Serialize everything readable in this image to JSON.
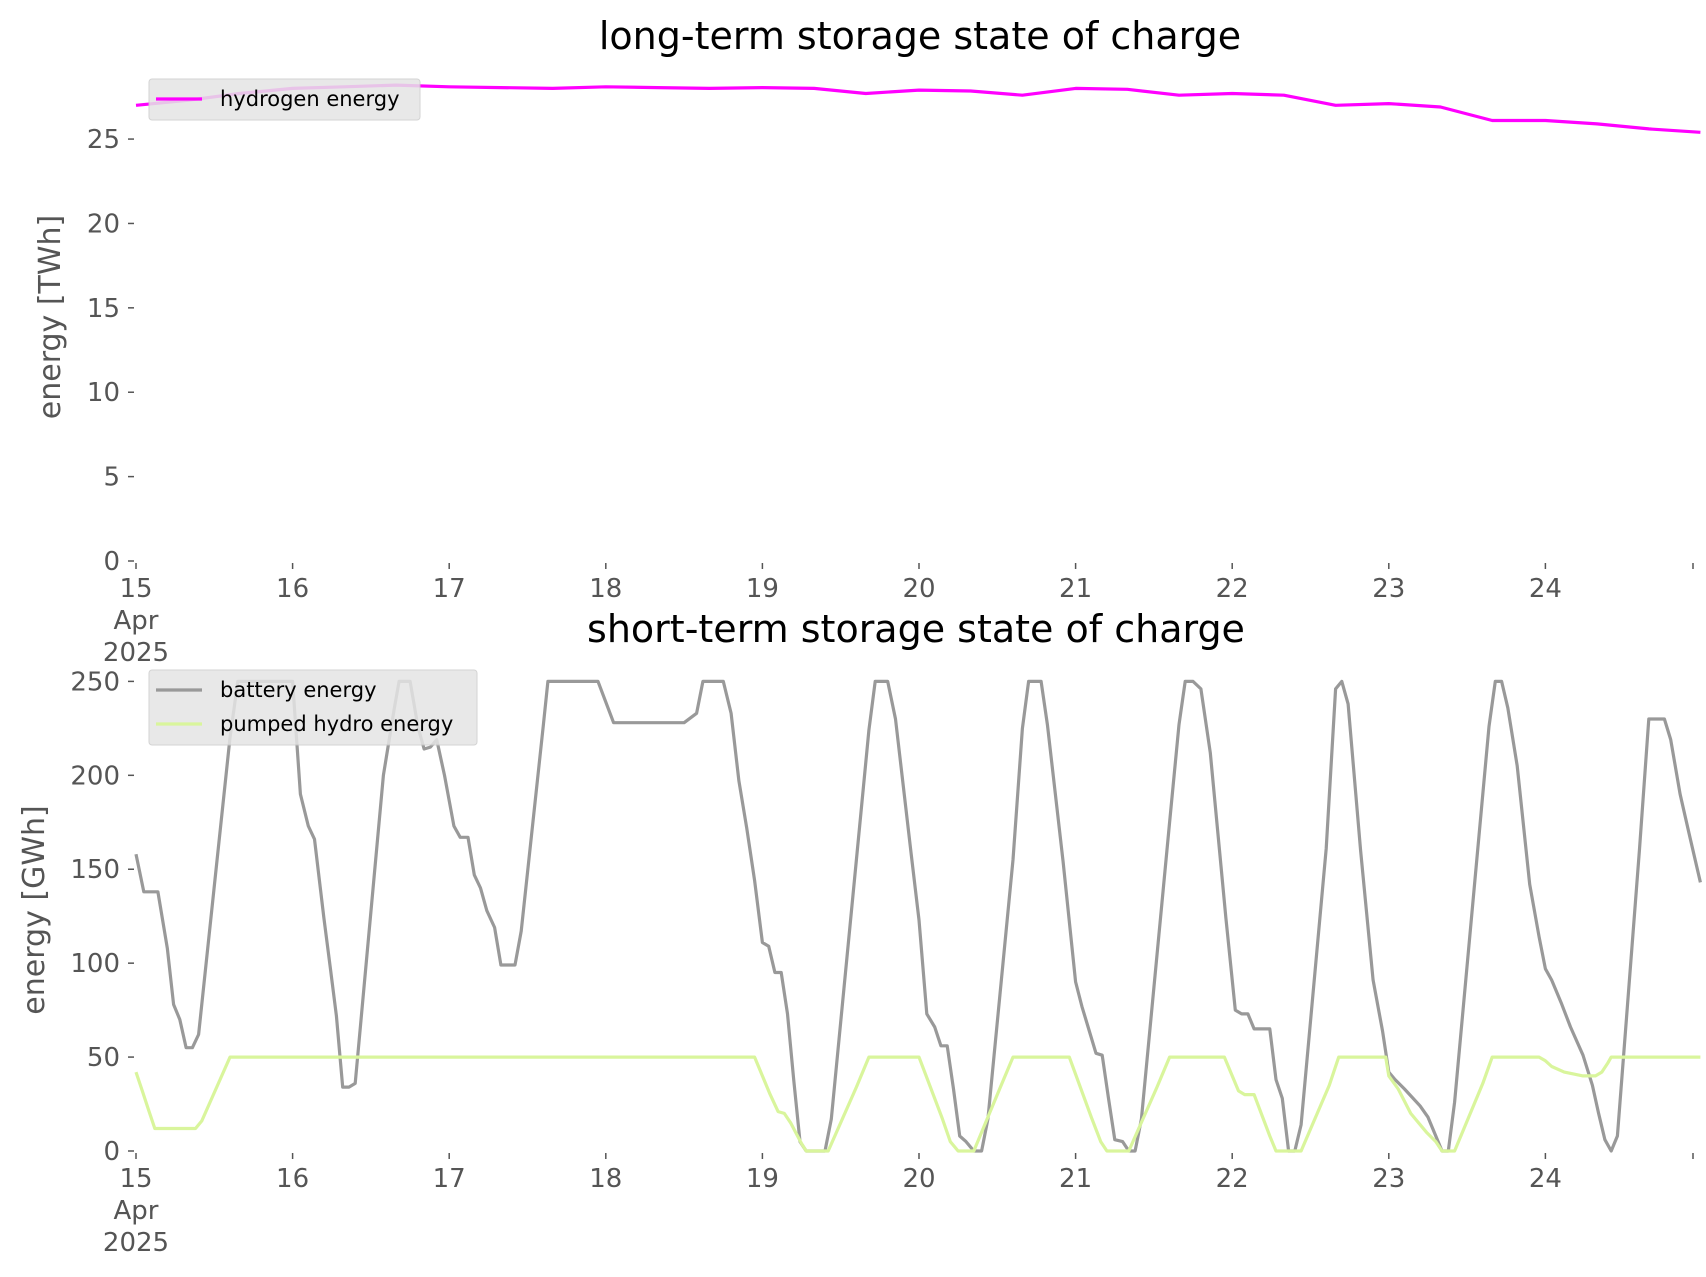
{
  "chart_data": [
    {
      "type": "line",
      "title": "long-term storage state of charge",
      "ylabel": "energy [TWh]",
      "xlabel": "",
      "ylim": [
        0,
        28.5
      ],
      "yticks": [
        0,
        5,
        10,
        15,
        20,
        25
      ],
      "x_range": [
        "2025-04-15T00:00",
        "2025-04-24T23:00"
      ],
      "xticks": [
        {
          "day": 0,
          "lines": [
            "15",
            "Apr",
            "2025"
          ]
        },
        {
          "day": 1,
          "lines": [
            "16"
          ]
        },
        {
          "day": 2,
          "lines": [
            "17"
          ]
        },
        {
          "day": 3,
          "lines": [
            "18"
          ]
        },
        {
          "day": 4,
          "lines": [
            "19"
          ]
        },
        {
          "day": 5,
          "lines": [
            "20"
          ]
        },
        {
          "day": 6,
          "lines": [
            "21"
          ]
        },
        {
          "day": 7,
          "lines": [
            "22"
          ]
        },
        {
          "day": 8,
          "lines": [
            "23"
          ]
        },
        {
          "day": 9,
          "lines": [
            "24"
          ]
        }
      ],
      "grid": false,
      "legend_position": "top-left",
      "series": [
        {
          "name": "hydrogen energy",
          "color": "#ff00ff",
          "points": [
            [
              0,
              27.0
            ],
            [
              0.33,
              27.3
            ],
            [
              0.66,
              27.7
            ],
            [
              1.0,
              28.0
            ],
            [
              1.33,
              28.1
            ],
            [
              1.66,
              28.2
            ],
            [
              2.0,
              28.1
            ],
            [
              2.33,
              28.05
            ],
            [
              2.66,
              28.0
            ],
            [
              3.0,
              28.1
            ],
            [
              3.33,
              28.05
            ],
            [
              3.66,
              28.0
            ],
            [
              4.0,
              28.05
            ],
            [
              4.33,
              28.0
            ],
            [
              4.66,
              27.7
            ],
            [
              5.0,
              27.9
            ],
            [
              5.33,
              27.85
            ],
            [
              5.66,
              27.6
            ],
            [
              6.0,
              28.0
            ],
            [
              6.33,
              27.95
            ],
            [
              6.66,
              27.6
            ],
            [
              7.0,
              27.7
            ],
            [
              7.33,
              27.6
            ],
            [
              7.66,
              27.0
            ],
            [
              8.0,
              27.1
            ],
            [
              8.33,
              26.9
            ],
            [
              8.66,
              26.1
            ],
            [
              9.0,
              26.1
            ],
            [
              9.33,
              25.9
            ],
            [
              9.66,
              25.6
            ],
            [
              9.99,
              25.4
            ]
          ]
        }
      ]
    },
    {
      "type": "line",
      "title": "short-term storage state of charge",
      "ylabel": "energy [GWh]",
      "xlabel": "",
      "ylim": [
        0,
        255
      ],
      "yticks": [
        0,
        50,
        100,
        150,
        200,
        250
      ],
      "x_range": [
        "2025-04-15T00:00",
        "2025-04-24T23:00"
      ],
      "xticks": [
        {
          "day": 0,
          "lines": [
            "15",
            "Apr",
            "2025"
          ]
        },
        {
          "day": 1,
          "lines": [
            "16"
          ]
        },
        {
          "day": 2,
          "lines": [
            "17"
          ]
        },
        {
          "day": 3,
          "lines": [
            "18"
          ]
        },
        {
          "day": 4,
          "lines": [
            "19"
          ]
        },
        {
          "day": 5,
          "lines": [
            "20"
          ]
        },
        {
          "day": 6,
          "lines": [
            "21"
          ]
        },
        {
          "day": 7,
          "lines": [
            "22"
          ]
        },
        {
          "day": 8,
          "lines": [
            "23"
          ]
        },
        {
          "day": 9,
          "lines": [
            "24"
          ]
        }
      ],
      "grid": false,
      "legend_position": "top-left",
      "series": [
        {
          "name": "battery energy",
          "color": "#999999",
          "points": [
            [
              0,
              158
            ],
            [
              0.05,
              138
            ],
            [
              0.14,
              138
            ],
            [
              0.2,
              108
            ],
            [
              0.24,
              78
            ],
            [
              0.28,
              70
            ],
            [
              0.32,
              55
            ],
            [
              0.36,
              55
            ],
            [
              0.4,
              62
            ],
            [
              0.6,
              220
            ],
            [
              0.65,
              250
            ],
            [
              1.0,
              250
            ],
            [
              1.05,
              190
            ],
            [
              1.1,
              173
            ],
            [
              1.14,
              166
            ],
            [
              1.2,
              124
            ],
            [
              1.24,
              98
            ],
            [
              1.28,
              72
            ],
            [
              1.32,
              34
            ],
            [
              1.36,
              34
            ],
            [
              1.4,
              36
            ],
            [
              1.58,
              200
            ],
            [
              1.65,
              236
            ],
            [
              1.68,
              250
            ],
            [
              1.75,
              250
            ],
            [
              1.8,
              226
            ],
            [
              1.84,
              214
            ],
            [
              1.88,
              215
            ],
            [
              1.92,
              219
            ],
            [
              1.97,
              200
            ],
            [
              2.03,
              173
            ],
            [
              2.07,
              167
            ],
            [
              2.12,
              167
            ],
            [
              2.16,
              147
            ],
            [
              2.2,
              140
            ],
            [
              2.24,
              128
            ],
            [
              2.29,
              119
            ],
            [
              2.33,
              99
            ],
            [
              2.42,
              99
            ],
            [
              2.46,
              117
            ],
            [
              2.6,
              226
            ],
            [
              2.63,
              250
            ],
            [
              2.95,
              250
            ],
            [
              3.05,
              228
            ],
            [
              3.5,
              228
            ],
            [
              3.58,
              233
            ],
            [
              3.62,
              250
            ],
            [
              3.75,
              250
            ],
            [
              3.8,
              233
            ],
            [
              3.85,
              197
            ],
            [
              3.9,
              172
            ],
            [
              3.95,
              144
            ],
            [
              4.0,
              111
            ],
            [
              4.04,
              109
            ],
            [
              4.08,
              95
            ],
            [
              4.12,
              95
            ],
            [
              4.16,
              73
            ],
            [
              4.2,
              38
            ],
            [
              4.24,
              5
            ],
            [
              4.28,
              0
            ],
            [
              4.4,
              0
            ],
            [
              4.44,
              17
            ],
            [
              4.6,
              155
            ],
            [
              4.68,
              224
            ],
            [
              4.72,
              250
            ],
            [
              4.8,
              250
            ],
            [
              4.85,
              230
            ],
            [
              4.95,
              158
            ],
            [
              5.0,
              123
            ],
            [
              5.05,
              73
            ],
            [
              5.1,
              66
            ],
            [
              5.14,
              56
            ],
            [
              5.18,
              56
            ],
            [
              5.22,
              33
            ],
            [
              5.26,
              8
            ],
            [
              5.3,
              5
            ],
            [
              5.35,
              0
            ],
            [
              5.4,
              0
            ],
            [
              5.44,
              17
            ],
            [
              5.6,
              155
            ],
            [
              5.66,
              225
            ],
            [
              5.7,
              250
            ],
            [
              5.78,
              250
            ],
            [
              5.82,
              227
            ],
            [
              5.92,
              154
            ],
            [
              6.0,
              90
            ],
            [
              6.04,
              77
            ],
            [
              6.08,
              66
            ],
            [
              6.13,
              52
            ],
            [
              6.17,
              51
            ],
            [
              6.21,
              28
            ],
            [
              6.25,
              6
            ],
            [
              6.3,
              5
            ],
            [
              6.34,
              0
            ],
            [
              6.38,
              0
            ],
            [
              6.42,
              17
            ],
            [
              6.6,
              175
            ],
            [
              6.66,
              227
            ],
            [
              6.7,
              250
            ],
            [
              6.75,
              250
            ],
            [
              6.8,
              246
            ],
            [
              6.86,
              212
            ],
            [
              6.96,
              124
            ],
            [
              7.02,
              75
            ],
            [
              7.06,
              73
            ],
            [
              7.1,
              73
            ],
            [
              7.14,
              65
            ],
            [
              7.24,
              65
            ],
            [
              7.28,
              38
            ],
            [
              7.32,
              28
            ],
            [
              7.36,
              0
            ],
            [
              7.4,
              0
            ],
            [
              7.44,
              14
            ],
            [
              7.6,
              161
            ],
            [
              7.66,
              246
            ],
            [
              7.7,
              250
            ],
            [
              7.74,
              238
            ],
            [
              7.82,
              160
            ],
            [
              7.9,
              91
            ],
            [
              7.96,
              64
            ],
            [
              8.0,
              42
            ],
            [
              8.04,
              38
            ],
            [
              8.1,
              33
            ],
            [
              8.2,
              24
            ],
            [
              8.25,
              18
            ],
            [
              8.3,
              8
            ],
            [
              8.34,
              0
            ],
            [
              8.38,
              0
            ],
            [
              8.42,
              26
            ],
            [
              8.6,
              190
            ],
            [
              8.64,
              226
            ],
            [
              8.68,
              250
            ],
            [
              8.72,
              250
            ],
            [
              8.76,
              236
            ],
            [
              8.82,
              205
            ],
            [
              8.9,
              142
            ],
            [
              8.96,
              114
            ],
            [
              9.0,
              97
            ],
            [
              9.04,
              91
            ],
            [
              9.1,
              79
            ],
            [
              9.16,
              66
            ],
            [
              9.24,
              51
            ],
            [
              9.3,
              35
            ],
            [
              9.34,
              20
            ],
            [
              9.38,
              6
            ],
            [
              9.42,
              0
            ],
            [
              9.46,
              8
            ],
            [
              9.6,
              160
            ],
            [
              9.66,
              230
            ],
            [
              9.76,
              230
            ],
            [
              9.8,
              219
            ],
            [
              9.86,
              190
            ],
            [
              9.92,
              168
            ],
            [
              9.99,
              143
            ]
          ]
        },
        {
          "name": "pumped hydro energy",
          "color": "#d9f59c",
          "points": [
            [
              0,
              42
            ],
            [
              0.04,
              32
            ],
            [
              0.08,
              22
            ],
            [
              0.12,
              12
            ],
            [
              0.38,
              12
            ],
            [
              0.42,
              16
            ],
            [
              0.6,
              50
            ],
            [
              3.95,
              50
            ],
            [
              4.0,
              40
            ],
            [
              4.05,
              30
            ],
            [
              4.1,
              21
            ],
            [
              4.14,
              20
            ],
            [
              4.18,
              15
            ],
            [
              4.25,
              4
            ],
            [
              4.28,
              0
            ],
            [
              4.42,
              0
            ],
            [
              4.6,
              34
            ],
            [
              4.68,
              50
            ],
            [
              5.0,
              50
            ],
            [
              5.15,
              17
            ],
            [
              5.2,
              5
            ],
            [
              5.25,
              0
            ],
            [
              5.35,
              0
            ],
            [
              5.52,
              34
            ],
            [
              5.6,
              50
            ],
            [
              5.96,
              50
            ],
            [
              6.1,
              18
            ],
            [
              6.16,
              5
            ],
            [
              6.2,
              0
            ],
            [
              6.34,
              0
            ],
            [
              6.52,
              34
            ],
            [
              6.6,
              50
            ],
            [
              6.95,
              50
            ],
            [
              7.04,
              32
            ],
            [
              7.08,
              30
            ],
            [
              7.14,
              30
            ],
            [
              7.24,
              8
            ],
            [
              7.28,
              0
            ],
            [
              7.44,
              0
            ],
            [
              7.62,
              35
            ],
            [
              7.68,
              50
            ],
            [
              7.98,
              50
            ],
            [
              8.0,
              40
            ],
            [
              8.06,
              33
            ],
            [
              8.14,
              20
            ],
            [
              8.24,
              10
            ],
            [
              8.3,
              5
            ],
            [
              8.34,
              0
            ],
            [
              8.42,
              0
            ],
            [
              8.6,
              36
            ],
            [
              8.66,
              50
            ],
            [
              8.96,
              50
            ],
            [
              9.0,
              48
            ],
            [
              9.04,
              45
            ],
            [
              9.12,
              42
            ],
            [
              9.24,
              40
            ],
            [
              9.32,
              40
            ],
            [
              9.36,
              42
            ],
            [
              9.4,
              47
            ],
            [
              9.42,
              50
            ],
            [
              9.99,
              50
            ]
          ]
        }
      ]
    }
  ]
}
